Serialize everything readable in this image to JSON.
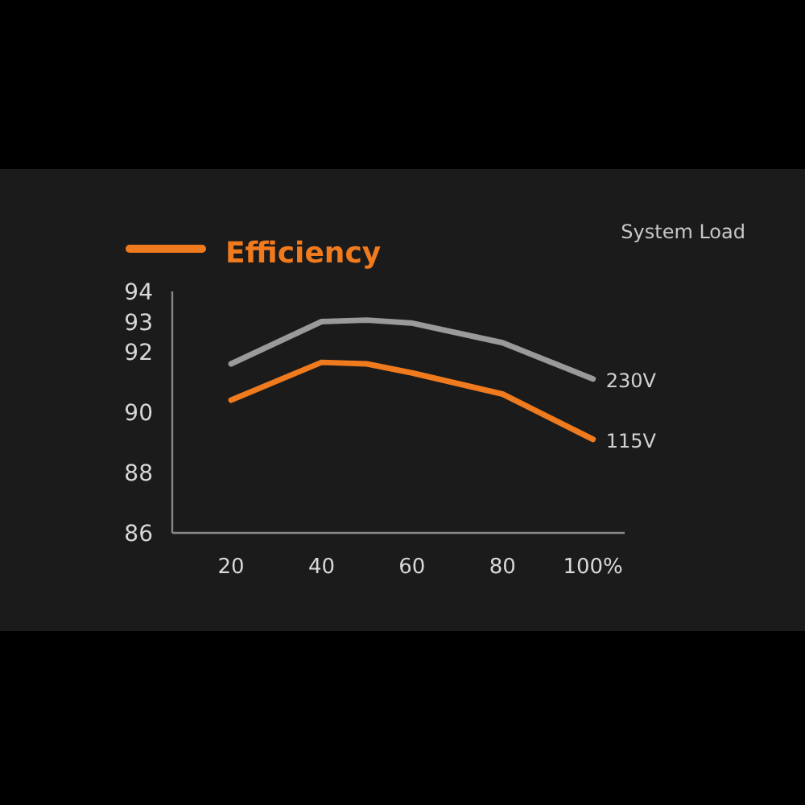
{
  "chart_data": {
    "type": "line",
    "title": "Efficiency",
    "xlabel": "System Load",
    "x": [
      20,
      40,
      50,
      60,
      80,
      100
    ],
    "series": [
      {
        "name": "230V",
        "color": "#9a9a9a",
        "values": [
          91.6,
          93.0,
          93.05,
          92.95,
          92.3,
          91.1
        ]
      },
      {
        "name": "115V",
        "color": "#f07a1e",
        "values": [
          90.4,
          91.65,
          91.6,
          91.3,
          90.6,
          89.1
        ]
      }
    ],
    "xlim": [
      7,
      107
    ],
    "xticks": [
      20,
      40,
      60,
      80,
      {
        "value": 100,
        "label": "100%"
      }
    ],
    "ylim": [
      86,
      94
    ],
    "yticks": [
      94,
      93,
      92,
      90,
      88,
      86
    ],
    "grid": false,
    "legend": false,
    "marker": "none",
    "line_style": "solid"
  }
}
